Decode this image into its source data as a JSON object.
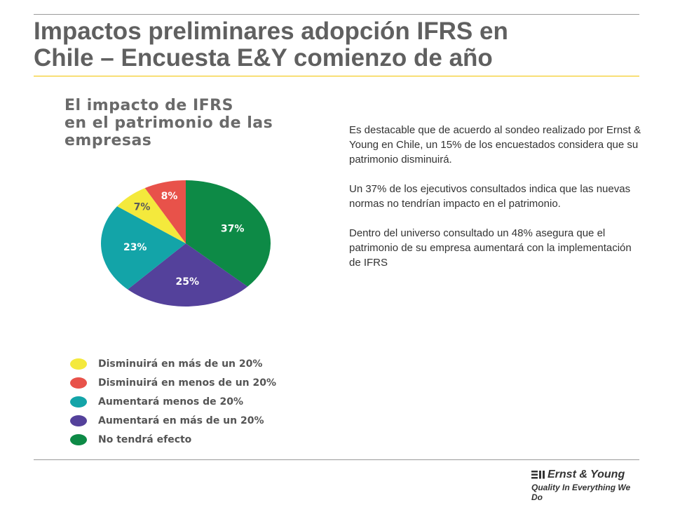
{
  "page": {
    "title_line1": "Impactos preliminares adopción IFRS en",
    "title_line2": "Chile – Encuesta E&Y comienzo de año"
  },
  "chart_data": {
    "type": "pie",
    "title_lines": [
      "El impacto de IFRS",
      "en el patrimonio de las",
      "empresas"
    ],
    "slices": [
      {
        "name": "No tendrá efecto",
        "value": 37,
        "label": "37%",
        "color": "#0d8a46"
      },
      {
        "name": "Aumentará en más de un 20%",
        "value": 25,
        "label": "25%",
        "color": "#54419b"
      },
      {
        "name": "Aumentará menos de 20%",
        "value": 23,
        "label": "23%",
        "color": "#13a4a8"
      },
      {
        "name": "Disminuirá en más de un 20%",
        "value": 7,
        "label": "7%",
        "color": "#f4e93c"
      },
      {
        "name": "Disminuirá en menos de un 20%",
        "value": 8,
        "label": "8%",
        "color": "#e8524a"
      }
    ],
    "legend": [
      {
        "label": "Disminuirá en más de un 20%",
        "color": "#f4e93c"
      },
      {
        "label": "Disminuirá en menos de un 20%",
        "color": "#e8524a"
      },
      {
        "label": "Aumentará menos de 20%",
        "color": "#13a4a8"
      },
      {
        "label": "Aumentará en más de un 20%",
        "color": "#54419b"
      },
      {
        "label": "No tendrá efecto",
        "color": "#0d8a46"
      }
    ],
    "legend_position": "bottom"
  },
  "text": {
    "p1": "Es destacable que de acuerdo al sondeo realizado por Ernst & Young en Chile, un 15% de los encuestados considera que su patrimonio disminuirá.",
    "p2": "Un 37% de los ejecutivos consultados indica que las nuevas normas no tendrían impacto en el patrimonio.",
    "p3": "Dentro del universo consultado un 48% asegura que el patrimonio de su empresa aumentará con la implementación de IFRS"
  },
  "logo": {
    "name": "Ernst & Young",
    "tagline": "Quality In Everything We Do"
  }
}
